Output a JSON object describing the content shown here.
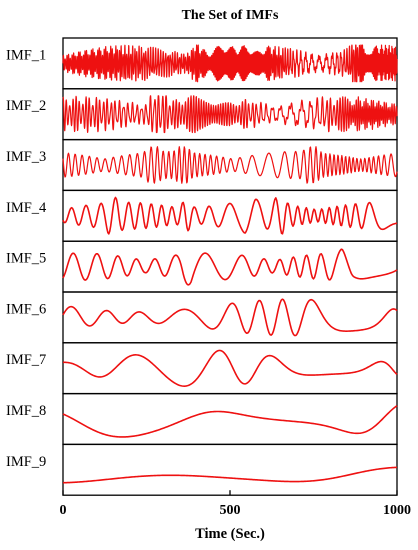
{
  "chart_data": {
    "type": "line",
    "title": "The Set of IMFs",
    "xlabel": "Time (Sec.)",
    "ylabel": "",
    "xlim": [
      0,
      1000
    ],
    "x_ticks": [
      0,
      500,
      1000
    ],
    "x_tick_labels": [
      "0",
      "500",
      "1000"
    ],
    "line_color": "#ee1111",
    "grid": false,
    "legend": "none",
    "series": [
      {
        "name": "IMF_1",
        "approx_cycles": 190,
        "bursts": [
          400,
          470,
          880
        ]
      },
      {
        "name": "IMF_2",
        "approx_cycles": 95,
        "bursts": [
          270,
          300,
          380
        ]
      },
      {
        "name": "IMF_3",
        "approx_cycles": 48,
        "bursts": [
          270,
          360,
          745
        ]
      },
      {
        "name": "IMF_4",
        "approx_cycles": 25,
        "bursts": [
          150,
          370,
          560,
          650
        ]
      },
      {
        "name": "IMF_5",
        "approx_cycles": 15,
        "bursts": [
          370,
          850
        ]
      },
      {
        "name": "IMF_6",
        "approx_cycles": 9,
        "bursts": [
          430
        ]
      },
      {
        "name": "IMF_7",
        "approx_cycles": 4.5,
        "bursts": []
      },
      {
        "name": "IMF_8",
        "approx_cycles": 1.6,
        "bursts": []
      },
      {
        "name": "IMF_9",
        "approx_cycles": 0.35,
        "bursts": []
      }
    ]
  }
}
